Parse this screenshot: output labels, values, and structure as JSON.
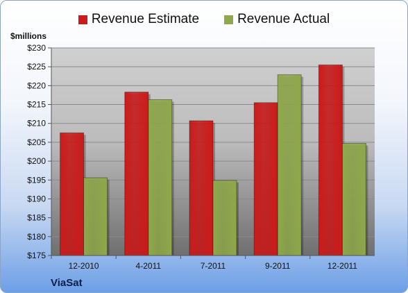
{
  "chart_data": {
    "type": "bar",
    "unit_label": "$millions",
    "company": "ViaSat",
    "categories": [
      "12-2010",
      "4-2011",
      "7-2011",
      "9-2011",
      "12-2011"
    ],
    "series": [
      {
        "name": "Revenue Estimate",
        "color": "#cc1a1a",
        "values": [
          207.5,
          218.3,
          210.7,
          215.5,
          225.5
        ]
      },
      {
        "name": "Revenue Actual",
        "color": "#8fa84a",
        "values": [
          195.6,
          216.3,
          194.9,
          222.9,
          204.7
        ]
      }
    ],
    "ylim": [
      175,
      230
    ],
    "yticks": [
      "$175",
      "$180",
      "$185",
      "$190",
      "$195",
      "$200",
      "$205",
      "$210",
      "$215",
      "$220",
      "$225",
      "$230"
    ],
    "grid": true,
    "legend_position": "top-center"
  }
}
